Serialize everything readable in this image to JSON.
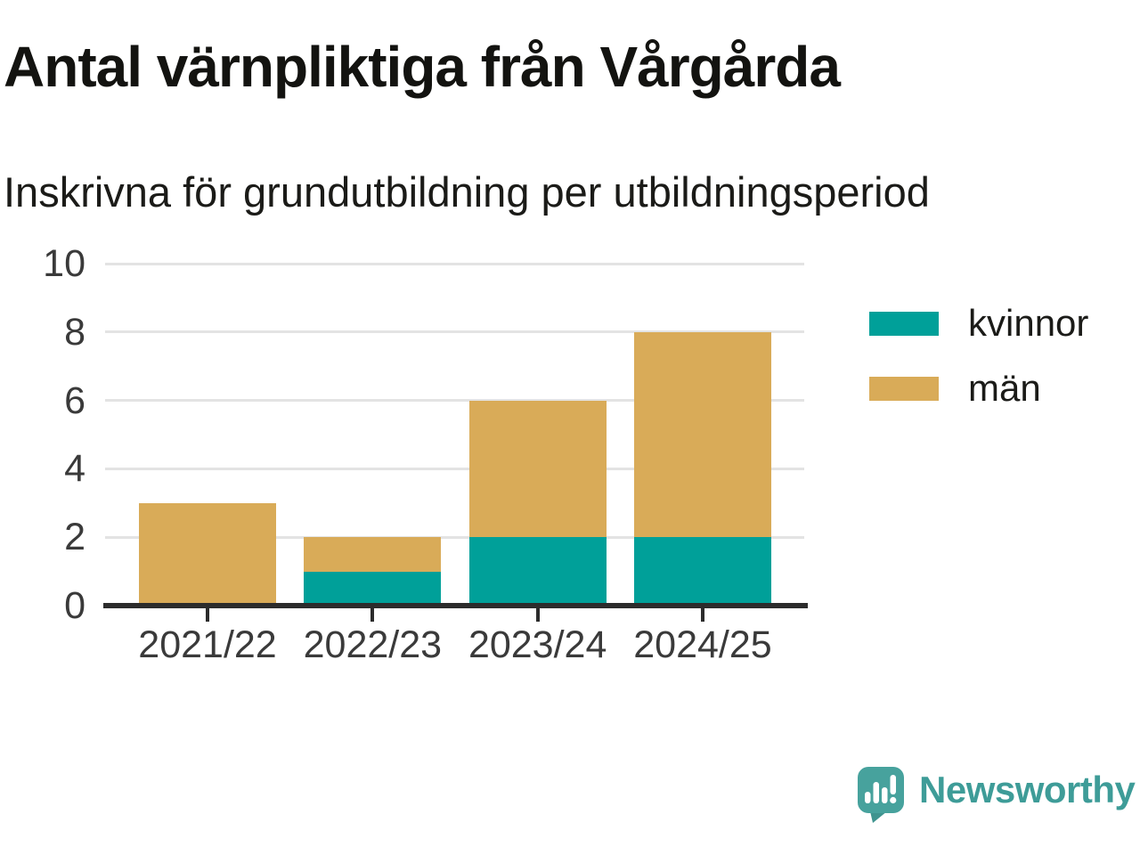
{
  "title": "Antal värnpliktiga från Vårgårda",
  "subtitle": "Inskrivna för grundutbildning per utbildningsperiod",
  "chart_data": {
    "type": "bar",
    "stacked": true,
    "categories": [
      "2021/22",
      "2022/23",
      "2023/24",
      "2024/25"
    ],
    "series": [
      {
        "name": "kvinnor",
        "color": "#00a099",
        "values": [
          0,
          1,
          2,
          2
        ]
      },
      {
        "name": "män",
        "color": "#d9ab58",
        "values": [
          3,
          1,
          4,
          6
        ]
      }
    ],
    "totals": [
      3,
      2,
      6,
      8
    ],
    "title": "Antal värnpliktiga från Vårgårda",
    "subtitle": "Inskrivna för grundutbildning per utbildningsperiod",
    "xlabel": "",
    "ylabel": "",
    "ylim": [
      0,
      10
    ],
    "yticks": [
      0,
      2,
      4,
      6,
      8,
      10
    ],
    "grid": true,
    "legend_position": "right"
  },
  "colors": {
    "kvinnor": "#00a099",
    "man": "#d9ab58",
    "gridline": "#e3e3e3",
    "axis": "#2c2c2c",
    "text_dark": "#131310",
    "text_axis": "#3a3a3a",
    "logo_teal": "#3e9c98"
  },
  "branding": {
    "logo_text": "Newsworthy",
    "logo_icon": "newsworthy-speech-bubble-bar-chart-icon"
  }
}
